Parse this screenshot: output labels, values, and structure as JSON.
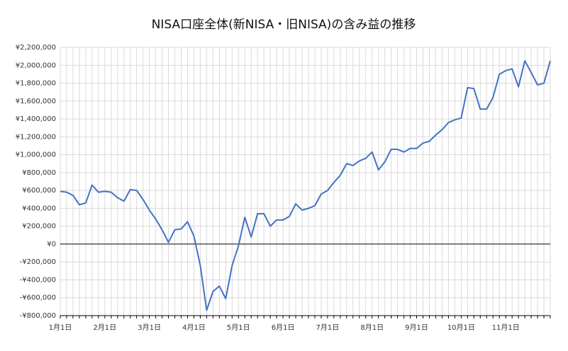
{
  "chart_data": {
    "type": "line",
    "title": "NISA口座全体(新NISA・旧NISA)の含み益の推移",
    "categories": [
      "1月1日",
      null,
      null,
      null,
      null,
      null,
      null,
      "2月1日",
      null,
      null,
      null,
      null,
      null,
      null,
      "3月1日",
      null,
      null,
      null,
      null,
      null,
      null,
      "4月1日",
      null,
      null,
      null,
      null,
      null,
      null,
      "5月1日",
      null,
      null,
      null,
      null,
      null,
      null,
      "6月1日",
      null,
      null,
      null,
      null,
      null,
      null,
      "7月1日",
      null,
      null,
      null,
      null,
      null,
      null,
      "8月1日",
      null,
      null,
      null,
      null,
      null,
      null,
      "9月1日",
      null,
      null,
      null,
      null,
      null,
      null,
      "10月1日",
      null,
      null,
      null,
      null,
      null,
      null,
      "11月1日",
      null,
      null,
      null,
      null,
      null,
      null,
      null
    ],
    "series": [
      {
        "color": "#4472c4",
        "values": [
          590000,
          580000,
          545000,
          440000,
          460000,
          660000,
          580000,
          590000,
          580000,
          520000,
          480000,
          610000,
          600000,
          500000,
          380000,
          280000,
          160000,
          20000,
          160000,
          170000,
          250000,
          90000,
          -240000,
          -740000,
          -530000,
          -470000,
          -610000,
          -240000,
          -20000,
          300000,
          80000,
          340000,
          340000,
          200000,
          270000,
          270000,
          310000,
          450000,
          380000,
          400000,
          430000,
          560000,
          600000,
          690000,
          770000,
          900000,
          880000,
          930000,
          960000,
          1030000,
          830000,
          920000,
          1060000,
          1060000,
          1030000,
          1070000,
          1070000,
          1130000,
          1150000,
          1220000,
          1280000,
          1360000,
          1390000,
          1410000,
          1750000,
          1740000,
          1510000,
          1510000,
          1640000,
          1900000,
          1940000,
          1960000,
          1760000,
          2050000,
          1920000,
          1780000,
          1800000,
          2050000
        ]
      }
    ],
    "ylim": [
      -800000,
      2200000
    ],
    "yticks": [
      {
        "value": -800000,
        "label": "-¥800,000"
      },
      {
        "value": -600000,
        "label": "-¥600,000"
      },
      {
        "value": -400000,
        "label": "-¥400,000"
      },
      {
        "value": -200000,
        "label": "-¥200,000"
      },
      {
        "value": 0,
        "label": "¥0"
      },
      {
        "value": 200000,
        "label": "¥200,000"
      },
      {
        "value": 400000,
        "label": "¥400,000"
      },
      {
        "value": 600000,
        "label": "¥600,000"
      },
      {
        "value": 800000,
        "label": "¥800,000"
      },
      {
        "value": 1000000,
        "label": "¥1,000,000"
      },
      {
        "value": 1200000,
        "label": "¥1,200,000"
      },
      {
        "value": 1400000,
        "label": "¥1,400,000"
      },
      {
        "value": 1600000,
        "label": "¥1,600,000"
      },
      {
        "value": 1800000,
        "label": "¥1,800,000"
      },
      {
        "value": 2000000,
        "label": "¥2,000,000"
      },
      {
        "value": 2200000,
        "label": "¥2,200,000"
      }
    ],
    "grid": true
  }
}
